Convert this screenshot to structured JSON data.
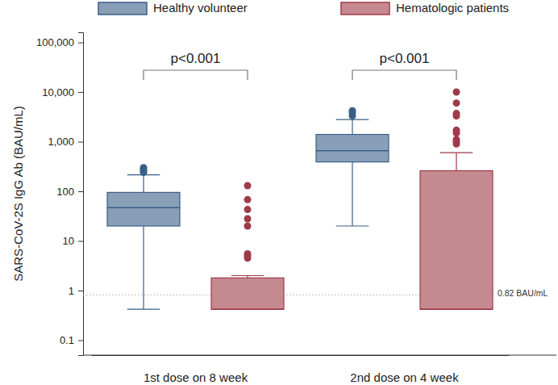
{
  "chart_data": {
    "type": "box",
    "y_label": "SARS-CoV-2S IgG Ab (BAU/mL)",
    "categories": [
      "1st dose on 8 week",
      "2nd dose on 4 week"
    ],
    "log": "y",
    "grid": false,
    "legend": "top",
    "ylim": [
      0.05,
      160000
    ],
    "yticks": [
      0.1,
      1,
      10,
      100,
      {
        "value": 1000,
        "label": "1,000"
      },
      {
        "value": 10000,
        "label": "10,000"
      },
      {
        "value": 100000,
        "label": "100,000"
      }
    ],
    "series": [
      {
        "name": "Healthy volunteer",
        "color": "#3a5f87",
        "values": [
          {
            "low": 0.42,
            "q1": 20,
            "median": 47,
            "q3": 95,
            "high": 215,
            "outliers": [
              240,
              260,
              280,
              300
            ]
          },
          {
            "low": 20,
            "q1": 390,
            "median": 660,
            "q3": 1400,
            "high": 2800,
            "outliers": [
              3300,
              3800,
              4200
            ]
          }
        ]
      },
      {
        "name": "Hematologic patients",
        "color": "#9e3b48",
        "values": [
          {
            "low": 0.42,
            "q1": 0.42,
            "median": 0.42,
            "q3": 1.8,
            "high": 2.0,
            "outliers": [
              4.5,
              5,
              5.5,
              20,
              28,
              43,
              68,
              130
            ]
          },
          {
            "low": 0.42,
            "q1": 0.42,
            "median": 0.42,
            "q3": 260,
            "high": 600,
            "outliers": [
              900,
              1000,
              1100,
              1500,
              1700,
              3300,
              3700,
              6000,
              10000
            ]
          }
        ]
      }
    ],
    "annotations": [
      {
        "text": "0.82 BAU/mL",
        "y": 0.82
      },
      {
        "text": "p<0.001",
        "category": "1st dose on 8 week"
      },
      {
        "text": "p<0.001",
        "category": "2nd dose on 4 week"
      }
    ]
  }
}
